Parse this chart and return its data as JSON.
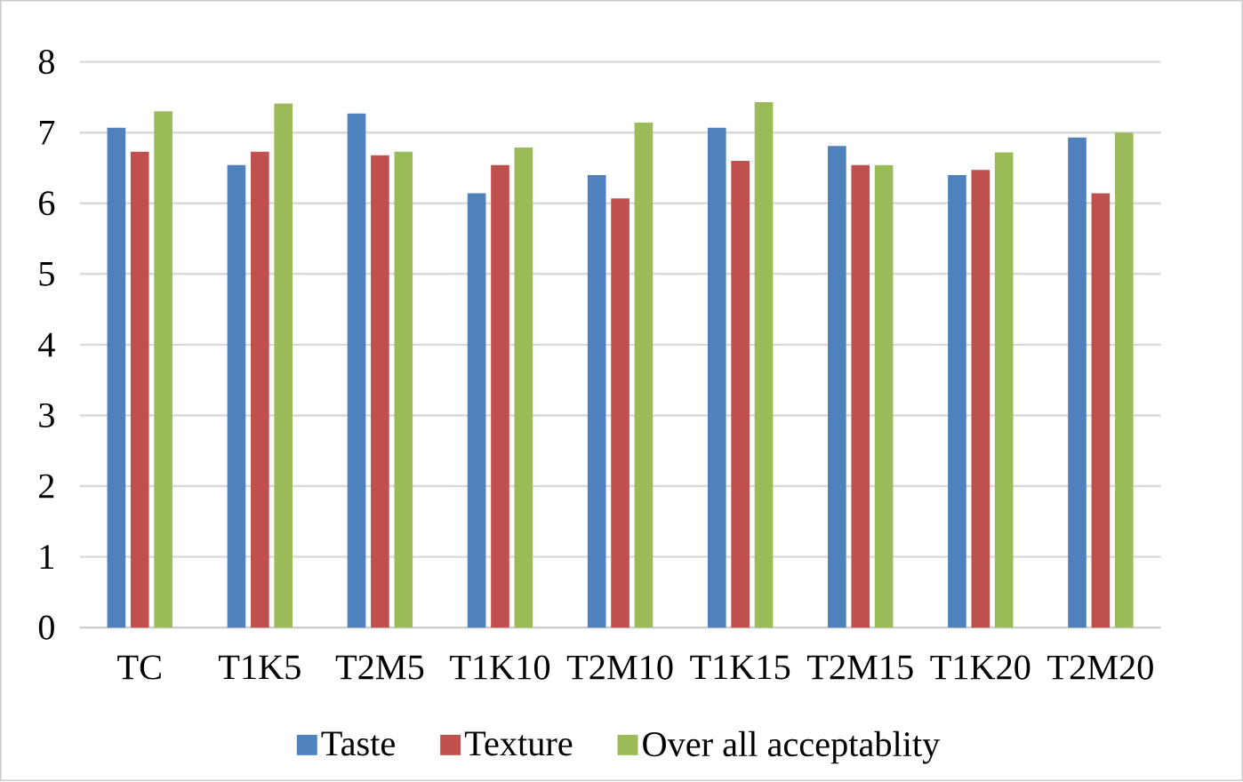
{
  "chart_data": {
    "type": "bar",
    "categories": [
      "TC",
      "T1K5",
      "T2M5",
      "T1K10",
      "T2M10",
      "T1K15",
      "T2M15",
      "T1K20",
      "T2M20"
    ],
    "series": [
      {
        "name": "Taste",
        "color": "#4f81bd",
        "values": [
          7.07,
          6.54,
          7.27,
          6.14,
          6.4,
          7.07,
          6.81,
          6.4,
          6.93
        ]
      },
      {
        "name": "Texture",
        "color": "#c0504d",
        "values": [
          6.73,
          6.73,
          6.68,
          6.54,
          6.07,
          6.6,
          6.54,
          6.47,
          6.14
        ]
      },
      {
        "name": "Over all acceptablity",
        "color": "#9bbb59",
        "values": [
          7.3,
          7.41,
          6.73,
          6.79,
          7.14,
          7.43,
          6.54,
          6.72,
          7.0
        ]
      }
    ],
    "ylim": [
      0,
      8
    ],
    "yticks": [
      0,
      1,
      2,
      3,
      4,
      5,
      6,
      7,
      8
    ],
    "grid": "y",
    "legend": "bottom"
  }
}
